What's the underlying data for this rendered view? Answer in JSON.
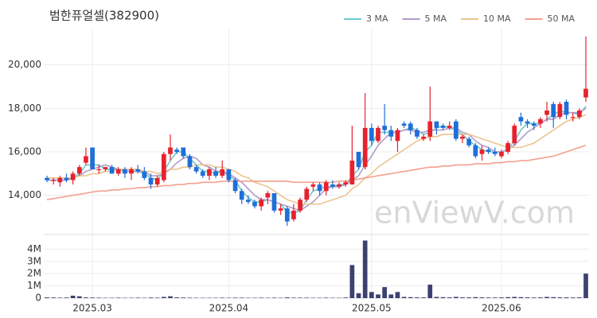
{
  "chart_data": {
    "type": "candlestick",
    "title": "범한퓨얼셀(382900)",
    "watermark": "enViewV.com",
    "categories": [
      null,
      null,
      null,
      null,
      null,
      null,
      null,
      "2025.03",
      null,
      null,
      null,
      null,
      null,
      null,
      null,
      null,
      null,
      null,
      null,
      null,
      null,
      null,
      null,
      null,
      null,
      null,
      null,
      null,
      "2025.04",
      null,
      null,
      null,
      null,
      null,
      null,
      null,
      null,
      null,
      null,
      null,
      null,
      null,
      null,
      null,
      null,
      null,
      null,
      null,
      null,
      null,
      "2025.05",
      null,
      null,
      null,
      null,
      null,
      null,
      null,
      null,
      null,
      null,
      null,
      null,
      null,
      null,
      null,
      null,
      null,
      null,
      null,
      "2025.06",
      null,
      null,
      null,
      null,
      null,
      null,
      null,
      null,
      null,
      null,
      null,
      null,
      null
    ],
    "open": [
      14800,
      14700,
      14600,
      14800,
      14700,
      15000,
      15500,
      16200,
      15200,
      15200,
      15300,
      15000,
      15200,
      15000,
      15200,
      15100,
      14800,
      14500,
      14700,
      15900,
      16100,
      16200,
      15800,
      15300,
      15100,
      14900,
      15100,
      14900,
      15200,
      14700,
      14200,
      13800,
      13700,
      13500,
      13900,
      14100,
      13300,
      13400,
      12900,
      13300,
      13800,
      14400,
      14500,
      14200,
      14500,
      14400,
      14500,
      14500,
      16000,
      15300,
      17100,
      16500,
      17200,
      17000,
      16500,
      17300,
      17300,
      17000,
      16600,
      16700,
      17400,
      17200,
      17100,
      17400,
      16600,
      16600,
      16300,
      15900,
      16100,
      16000,
      15800,
      16000,
      16400,
      17600,
      17400,
      17300,
      17300,
      17700,
      18200,
      17600,
      18300,
      17600,
      17600,
      18500
    ],
    "high": [
      14900,
      14800,
      14900,
      15000,
      15100,
      15400,
      16200,
      16200,
      15400,
      15300,
      15400,
      15300,
      15300,
      15300,
      15400,
      15300,
      15000,
      14900,
      16000,
      16800,
      16200,
      16200,
      15900,
      15400,
      15200,
      15300,
      15300,
      15600,
      15200,
      14800,
      14300,
      14000,
      13800,
      13900,
      14200,
      14100,
      13600,
      13500,
      13600,
      13900,
      14400,
      14600,
      14600,
      14700,
      14700,
      14600,
      14700,
      17200,
      16000,
      18700,
      17300,
      17200,
      18200,
      17200,
      17100,
      17400,
      17400,
      17100,
      16800,
      19000,
      17400,
      17300,
      17400,
      17500,
      16800,
      16700,
      16400,
      16300,
      16200,
      16200,
      16100,
      16500,
      17300,
      17800,
      17500,
      17400,
      17600,
      18300,
      18300,
      18300,
      18400,
      17800,
      18000,
      21300
    ],
    "low": [
      14600,
      14500,
      14400,
      14600,
      14500,
      14900,
      15400,
      15200,
      15000,
      15100,
      15000,
      14900,
      14800,
      14700,
      15000,
      14700,
      14300,
      14400,
      14600,
      15600,
      15900,
      15700,
      15200,
      15000,
      14800,
      14700,
      14800,
      14800,
      14600,
      14100,
      13600,
      13600,
      13400,
      13300,
      13600,
      13200,
      13100,
      12600,
      12800,
      13200,
      13700,
      14200,
      14000,
      14000,
      14300,
      14300,
      14400,
      14500,
      15200,
      15200,
      16300,
      16400,
      16800,
      16500,
      16000,
      17100,
      16800,
      16600,
      16500,
      16500,
      16800,
      17000,
      17000,
      16500,
      16400,
      16200,
      15700,
      15600,
      15900,
      15800,
      15700,
      15900,
      16300,
      17200,
      17100,
      17000,
      17100,
      17400,
      17100,
      17500,
      17500,
      17400,
      17500,
      18300
    ],
    "close": [
      14700,
      14700,
      14800,
      14700,
      15000,
      15300,
      15800,
      15200,
      15200,
      15300,
      15000,
      15200,
      15000,
      15200,
      15100,
      14800,
      14500,
      14800,
      15900,
      16200,
      16000,
      15800,
      15300,
      15100,
      14900,
      15200,
      14900,
      15200,
      14700,
      14200,
      13800,
      13700,
      13500,
      13800,
      14100,
      13300,
      13400,
      12800,
      13300,
      13800,
      14300,
      14500,
      14200,
      14600,
      14400,
      14500,
      14600,
      15600,
      15300,
      17100,
      16500,
      17100,
      17000,
      16700,
      17000,
      17200,
      17000,
      16700,
      16700,
      17400,
      17100,
      17100,
      17200,
      16600,
      16700,
      16300,
      15800,
      16100,
      16000,
      15900,
      16000,
      16400,
      17200,
      17400,
      17300,
      17200,
      17500,
      17900,
      17600,
      18200,
      17700,
      17600,
      17900,
      18900
    ],
    "up_color": "#e8212e",
    "down_color": "#1f6fd8",
    "ylim": [
      12200,
      21700
    ],
    "yticks": [
      {
        "value": 14000,
        "label": "14,000"
      },
      {
        "value": 16000,
        "label": "16,000"
      },
      {
        "value": 18000,
        "label": "18,000"
      },
      {
        "value": 20000,
        "label": "20,000"
      }
    ],
    "ma": [
      {
        "name": "3 MA",
        "color": "#6cc9cc",
        "values": [
          14700,
          14700,
          14700,
          14700,
          14800,
          15000,
          15400,
          15400,
          15400,
          15200,
          15200,
          15200,
          15100,
          15100,
          15100,
          15000,
          14800,
          14700,
          15100,
          15600,
          16000,
          16000,
          15700,
          15400,
          15100,
          15100,
          15000,
          15100,
          14900,
          14700,
          14200,
          13900,
          13700,
          13700,
          13800,
          13700,
          13600,
          13200,
          13200,
          13300,
          13800,
          14200,
          14300,
          14400,
          14400,
          14500,
          14500,
          14900,
          15200,
          16000,
          16300,
          16900,
          16900,
          16900,
          16900,
          17000,
          17100,
          17000,
          16800,
          16900,
          17100,
          17200,
          17100,
          17000,
          16800,
          16500,
          16300,
          16100,
          16000,
          16000,
          16000,
          16100,
          16500,
          17000,
          17300,
          17300,
          17300,
          17500,
          17700,
          17900,
          17800,
          17800,
          17700,
          18100
        ]
      },
      {
        "name": "5 MA",
        "color": "#b19ccc",
        "values": [
          14700,
          14700,
          14700,
          14700,
          14800,
          14900,
          15100,
          15200,
          15300,
          15400,
          15300,
          15200,
          15100,
          15100,
          15100,
          15100,
          14900,
          14900,
          15000,
          15200,
          15500,
          15700,
          15800,
          15700,
          15400,
          15300,
          15100,
          15100,
          15000,
          14800,
          14600,
          14300,
          14000,
          13800,
          13800,
          13700,
          13600,
          13500,
          13400,
          13300,
          13500,
          13700,
          14000,
          14300,
          14400,
          14400,
          14500,
          14700,
          14900,
          15400,
          15800,
          16300,
          16600,
          16900,
          16900,
          17000,
          17000,
          16900,
          16900,
          17000,
          17000,
          17000,
          17100,
          17100,
          16900,
          16800,
          16500,
          16300,
          16200,
          16000,
          16000,
          16100,
          16300,
          16600,
          16900,
          17100,
          17300,
          17500,
          17500,
          17700,
          17800,
          17800,
          17800,
          18000
        ]
      },
      {
        "name": "10 MA",
        "color": "#ecc48f",
        "values": [
          14800,
          14800,
          14800,
          14800,
          14800,
          14900,
          14900,
          15000,
          15000,
          15100,
          15100,
          15200,
          15200,
          15200,
          15200,
          15100,
          15100,
          15000,
          15100,
          15200,
          15200,
          15300,
          15300,
          15400,
          15400,
          15400,
          15300,
          15300,
          15200,
          15100,
          14900,
          14800,
          14600,
          14500,
          14400,
          14200,
          14000,
          13800,
          13700,
          13600,
          13600,
          13600,
          13600,
          13700,
          13800,
          13900,
          14000,
          14300,
          14500,
          14800,
          15000,
          15300,
          15500,
          15700,
          15900,
          16100,
          16300,
          16500,
          16600,
          16700,
          16700,
          16800,
          16800,
          16800,
          16800,
          16800,
          16700,
          16600,
          16500,
          16400,
          16300,
          16200,
          16200,
          16200,
          16300,
          16400,
          16600,
          16800,
          17000,
          17200,
          17400,
          17500,
          17600,
          17700
        ]
      },
      {
        "name": "50 MA",
        "color": "#f2a08f",
        "values": [
          13800,
          13850,
          13900,
          13950,
          14000,
          14050,
          14100,
          14150,
          14200,
          14200,
          14250,
          14250,
          14300,
          14300,
          14350,
          14350,
          14400,
          14400,
          14450,
          14450,
          14500,
          14500,
          14550,
          14550,
          14600,
          14600,
          14600,
          14650,
          14650,
          14650,
          14650,
          14650,
          14650,
          14650,
          14650,
          14650,
          14650,
          14650,
          14600,
          14600,
          14600,
          14600,
          14600,
          14600,
          14600,
          14650,
          14650,
          14700,
          14750,
          14800,
          14850,
          14900,
          14950,
          15000,
          15050,
          15100,
          15150,
          15200,
          15250,
          15300,
          15300,
          15350,
          15350,
          15400,
          15400,
          15400,
          15450,
          15450,
          15450,
          15500,
          15500,
          15550,
          15550,
          15600,
          15600,
          15650,
          15700,
          15750,
          15800,
          15900,
          16000,
          16100,
          16200,
          16300
        ]
      }
    ],
    "volume": {
      "color": "#3d4170",
      "ylim": [
        0,
        4800000
      ],
      "yticks": [
        0,
        {
          "value": 1000000,
          "label": "1M"
        },
        {
          "value": 2000000,
          "label": "2M"
        },
        {
          "value": 3000000,
          "label": "3M"
        },
        {
          "value": 4000000,
          "label": "4M"
        }
      ],
      "values": [
        60000,
        50000,
        40000,
        50000,
        200000,
        150000,
        60000,
        50000,
        40000,
        30000,
        30000,
        40000,
        30000,
        30000,
        40000,
        30000,
        50000,
        40000,
        100000,
        150000,
        60000,
        50000,
        40000,
        30000,
        30000,
        30000,
        30000,
        40000,
        30000,
        40000,
        40000,
        30000,
        30000,
        40000,
        30000,
        40000,
        30000,
        60000,
        40000,
        40000,
        40000,
        30000,
        30000,
        40000,
        30000,
        30000,
        50000,
        2700000,
        400000,
        4700000,
        500000,
        300000,
        900000,
        300000,
        500000,
        100000,
        80000,
        60000,
        60000,
        1100000,
        100000,
        80000,
        60000,
        100000,
        60000,
        60000,
        80000,
        60000,
        50000,
        50000,
        60000,
        80000,
        100000,
        80000,
        60000,
        50000,
        60000,
        100000,
        80000,
        60000,
        60000,
        50000,
        60000,
        2000000
      ]
    }
  }
}
